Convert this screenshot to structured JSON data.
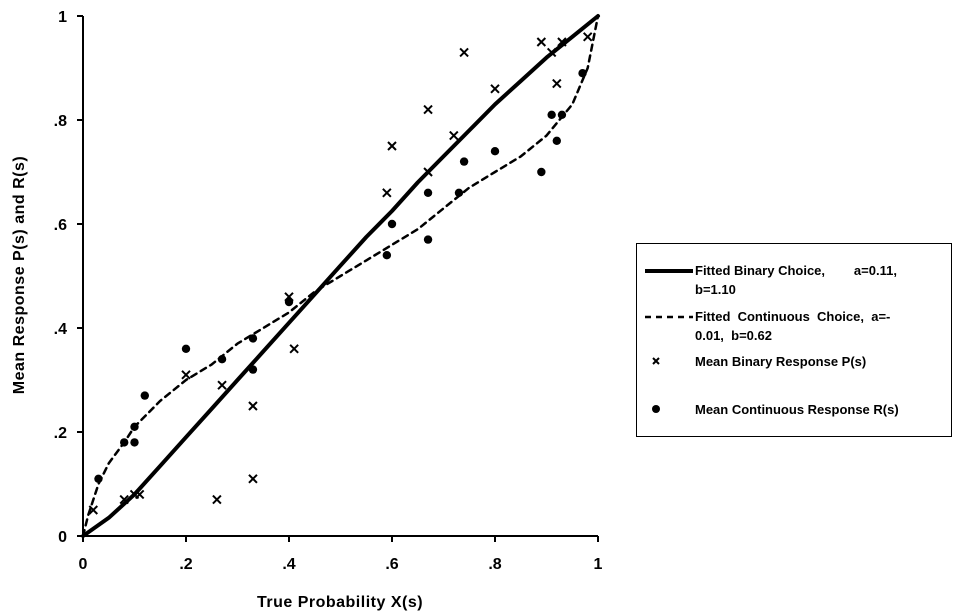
{
  "chart_data": {
    "type": "scatter",
    "xlabel": "True  Probability  X(s)",
    "ylabel": "Mean Response  P(s)  and  R(s)",
    "xlim": [
      0,
      1
    ],
    "ylim": [
      0,
      1
    ],
    "x_ticks": [
      "0",
      ".2",
      ".4",
      ".6",
      ".8",
      "1"
    ],
    "y_ticks": [
      "0",
      ".2",
      ".4",
      ".6",
      ".8",
      "1"
    ],
    "grid": false,
    "legend_position": "right",
    "series": [
      {
        "name": "Fitted Binary Choice,        a=0.11, b=1.10",
        "kind": "line",
        "style": "solid",
        "color": "#000000",
        "x": [
          0,
          0.05,
          0.1,
          0.15,
          0.2,
          0.25,
          0.3,
          0.35,
          0.4,
          0.45,
          0.5,
          0.55,
          0.6,
          0.65,
          0.7,
          0.75,
          0.8,
          0.85,
          0.9,
          0.95,
          1
        ],
        "y": [
          0,
          0.035,
          0.08,
          0.135,
          0.19,
          0.245,
          0.3,
          0.355,
          0.41,
          0.465,
          0.52,
          0.575,
          0.625,
          0.68,
          0.73,
          0.78,
          0.83,
          0.875,
          0.92,
          0.96,
          1
        ]
      },
      {
        "name": "Fitted Continuous Choice, a=-0.01, b=0.62",
        "kind": "line",
        "style": "dashed",
        "color": "#000000",
        "x": [
          0,
          0.01,
          0.03,
          0.05,
          0.08,
          0.1,
          0.15,
          0.2,
          0.25,
          0.3,
          0.35,
          0.4,
          0.45,
          0.5,
          0.55,
          0.6,
          0.65,
          0.7,
          0.75,
          0.8,
          0.85,
          0.9,
          0.95,
          0.98,
          1
        ],
        "y": [
          0,
          0.04,
          0.1,
          0.14,
          0.18,
          0.21,
          0.26,
          0.3,
          0.33,
          0.37,
          0.4,
          0.43,
          0.47,
          0.5,
          0.53,
          0.56,
          0.59,
          0.63,
          0.67,
          0.7,
          0.73,
          0.77,
          0.83,
          0.9,
          1
        ]
      },
      {
        "name": "Mean Binary Response P(s)",
        "kind": "points",
        "marker": "x",
        "color": "#000000",
        "x": [
          0.02,
          0.08,
          0.1,
          0.11,
          0.2,
          0.26,
          0.27,
          0.33,
          0.33,
          0.4,
          0.41,
          0.59,
          0.6,
          0.67,
          0.67,
          0.72,
          0.74,
          0.8,
          0.89,
          0.91,
          0.92,
          0.93,
          0.98
        ],
        "y": [
          0.05,
          0.07,
          0.08,
          0.08,
          0.31,
          0.07,
          0.29,
          0.25,
          0.11,
          0.46,
          0.36,
          0.66,
          0.75,
          0.82,
          0.7,
          0.77,
          0.93,
          0.86,
          0.95,
          0.93,
          0.87,
          0.95,
          0.96
        ]
      },
      {
        "name": "Mean Continuous Response R(s)",
        "kind": "points",
        "marker": "dot",
        "color": "#000000",
        "x": [
          0.03,
          0.08,
          0.1,
          0.1,
          0.12,
          0.2,
          0.27,
          0.33,
          0.33,
          0.4,
          0.59,
          0.6,
          0.67,
          0.67,
          0.73,
          0.74,
          0.8,
          0.89,
          0.91,
          0.92,
          0.93,
          0.97
        ],
        "y": [
          0.11,
          0.18,
          0.18,
          0.21,
          0.27,
          0.36,
          0.34,
          0.38,
          0.32,
          0.45,
          0.54,
          0.6,
          0.57,
          0.66,
          0.66,
          0.72,
          0.74,
          0.7,
          0.81,
          0.76,
          0.81,
          0.89
        ]
      }
    ]
  },
  "legend": {
    "items": [
      {
        "label": "Fitted Binary Choice,        a=0.11,\nb=1.10"
      },
      {
        "label": "Fitted  Continuous  Choice,  a=-\n0.01,  b=0.62"
      },
      {
        "label": "Mean Binary Response P(s)"
      },
      {
        "label": "Mean Continuous Response R(s)"
      }
    ]
  }
}
